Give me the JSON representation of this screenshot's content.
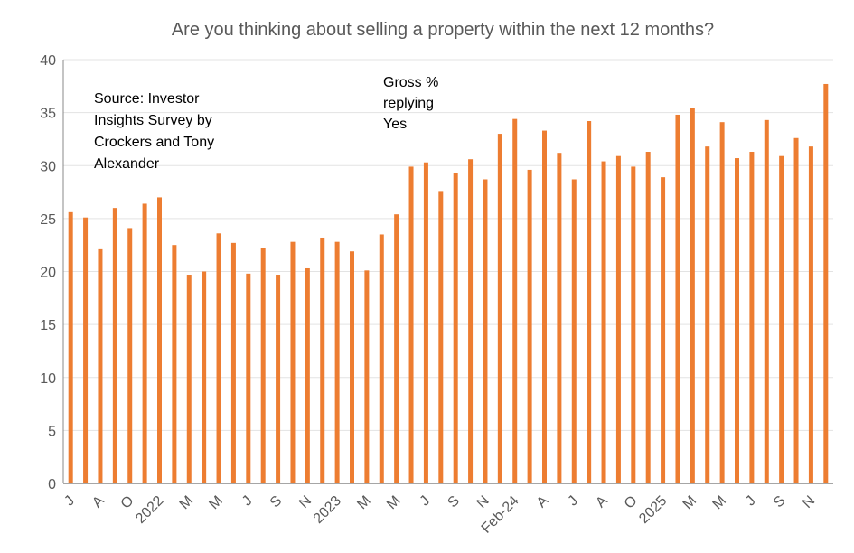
{
  "chart_data": {
    "type": "bar",
    "title": "Are you thinking about selling a property within the next 12 months?",
    "annotations": [
      "Source: Investor Insights Survey by Crockers and Tony Alexander",
      "Gross % replying Yes"
    ],
    "annotation_lines": {
      "source": [
        "Source: Investor",
        "Insights Survey by",
        "Crockers and Tony",
        "Alexander"
      ],
      "series": [
        "Gross %",
        "replying",
        "Yes"
      ]
    },
    "xlabel": "",
    "ylabel": "",
    "ylim": [
      0,
      40
    ],
    "yticks": [
      0,
      5,
      10,
      15,
      20,
      25,
      30,
      35,
      40
    ],
    "grid": true,
    "color": "#ED7D31",
    "tick_labels": [
      "J",
      "A",
      "O",
      "2022",
      "M",
      "M",
      "J",
      "S",
      "N",
      "2023",
      "M",
      "M",
      "J",
      "S",
      "N",
      "Feb-24",
      "A",
      "J",
      "A",
      "O",
      "2025",
      "M",
      "M",
      "J",
      "S",
      "N"
    ],
    "values": [
      25.6,
      25.1,
      22.1,
      26.0,
      24.1,
      26.4,
      27.0,
      22.5,
      19.7,
      20.0,
      23.6,
      22.7,
      19.8,
      22.2,
      19.7,
      22.8,
      20.3,
      23.2,
      22.8,
      21.9,
      20.1,
      23.5,
      25.4,
      29.9,
      30.3,
      27.6,
      29.3,
      30.6,
      28.7,
      33.0,
      34.4,
      29.6,
      33.3,
      31.2,
      28.7,
      34.2,
      30.4,
      30.9,
      29.9,
      31.3,
      28.9,
      34.8,
      35.4,
      31.8,
      34.1,
      30.7,
      31.3,
      34.3,
      30.9,
      32.6,
      31.8,
      37.7
    ]
  }
}
